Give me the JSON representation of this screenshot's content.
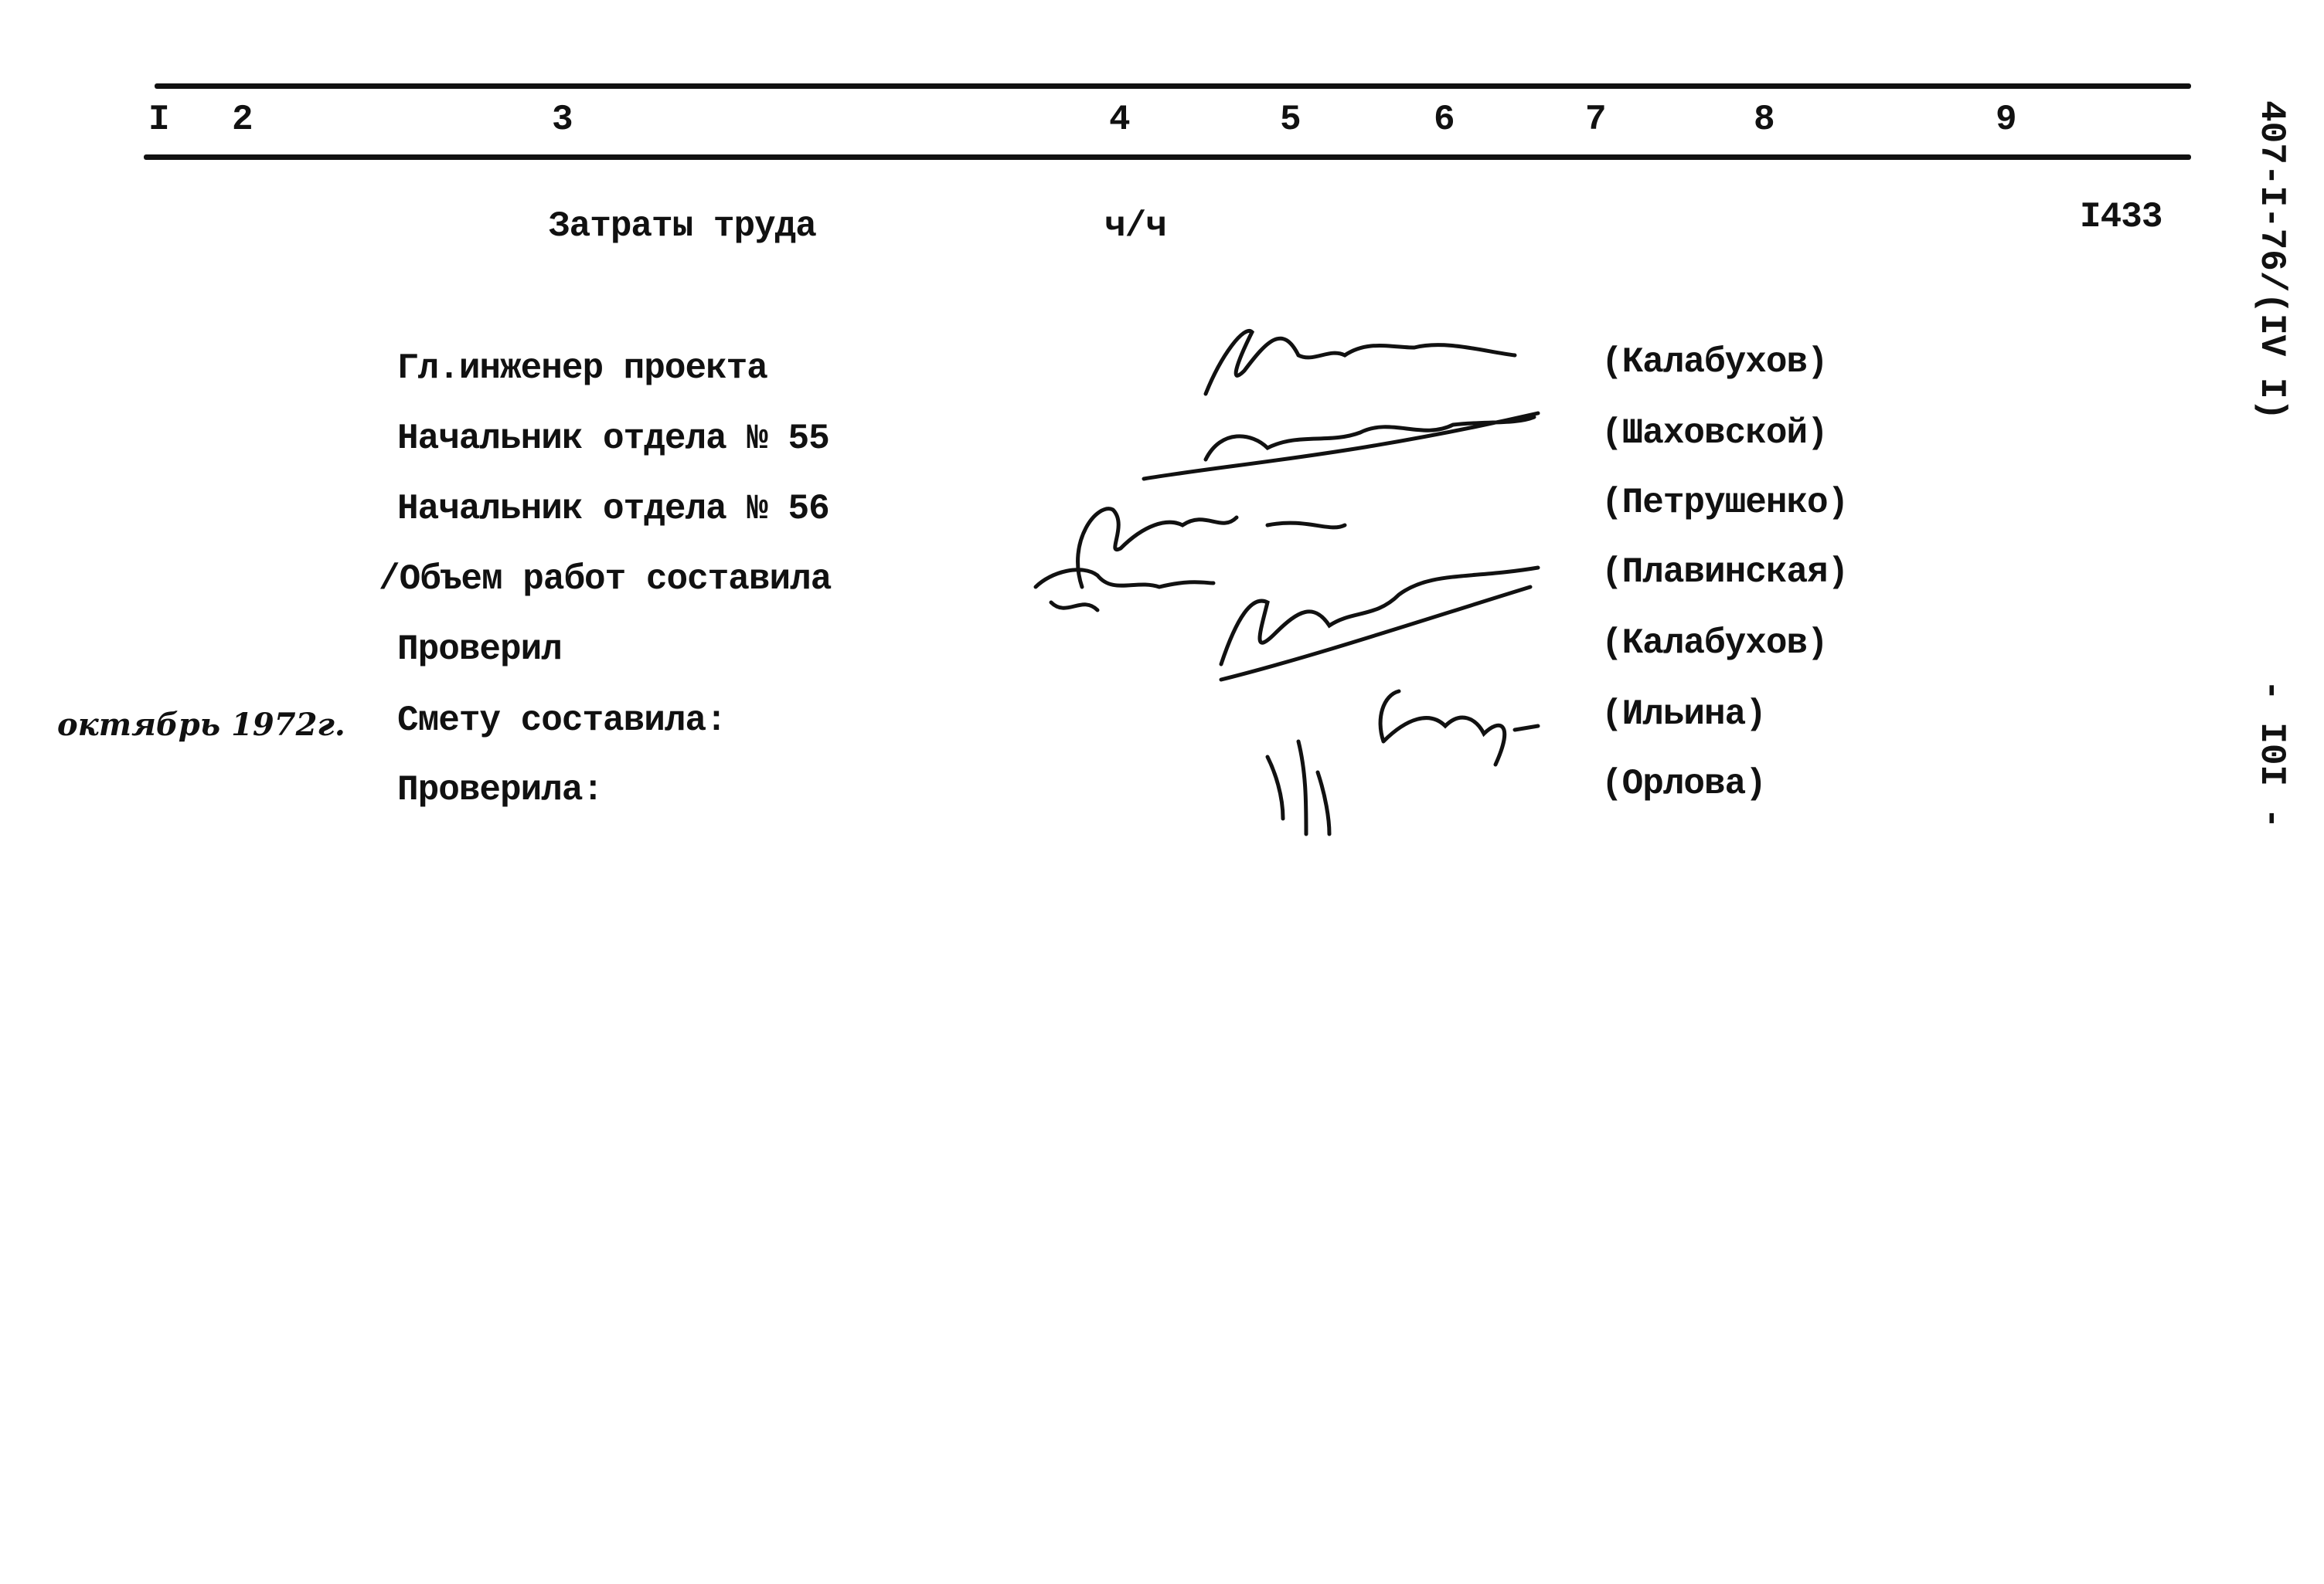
{
  "header": {
    "columns": [
      "I",
      "2",
      "3",
      "4",
      "5",
      "6",
      "7",
      "8",
      "9"
    ]
  },
  "labor": {
    "label": "Затраты труда",
    "unit": "ч/ч",
    "value": "I433"
  },
  "signatures": [
    {
      "role": "Гл.инженер проекта",
      "name": "(Калабухов)"
    },
    {
      "role": "Начальник отдела № 55",
      "name": "(Шаховской)"
    },
    {
      "role": "Начальник отдела № 56",
      "name": "(Петрушенко)"
    },
    {
      "role": "/Объем работ составила",
      "name": "(Плавинская)"
    },
    {
      "role": "Проверил",
      "name": "(Калабухов)"
    },
    {
      "role": "Смету составила:",
      "name": "(Ильина)"
    },
    {
      "role": "Проверила:",
      "name": "(Орлова)"
    }
  ],
  "handwritten_date": "октябрь 1972г.",
  "side": {
    "code": "407-I-76/(IV I)",
    "page": "- I0I -"
  }
}
